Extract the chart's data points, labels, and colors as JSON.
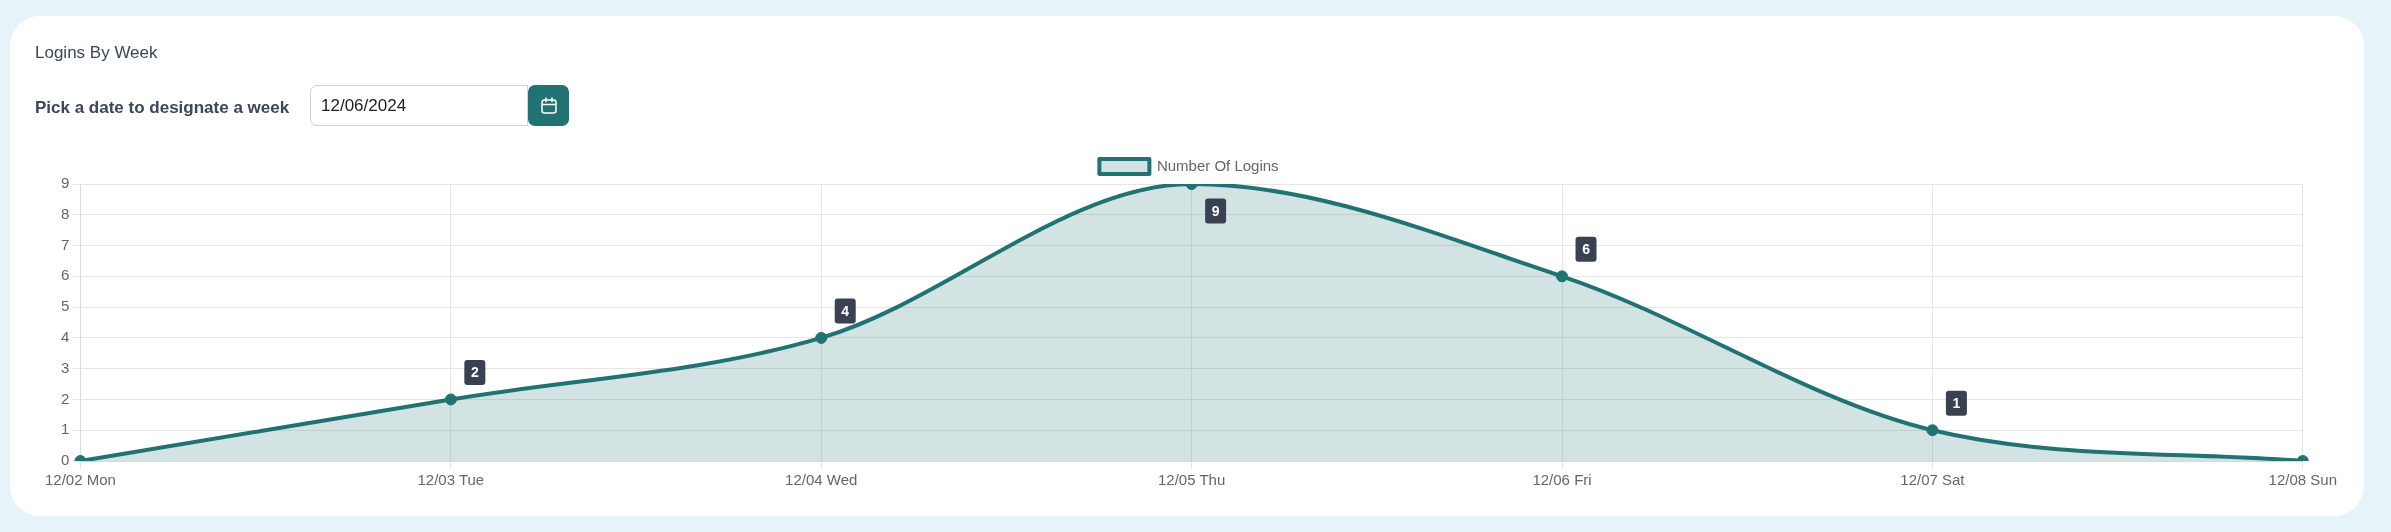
{
  "chart_data": {
    "type": "area",
    "title": "Logins By Week",
    "annotations": [
      "Pick a date to designate a week",
      "12/06/2024"
    ],
    "categories": [
      "12/02 Mon",
      "12/03 Tue",
      "12/04 Wed",
      "12/05 Thu",
      "12/06 Fri",
      "12/07 Sat",
      "12/08 Sun"
    ],
    "series": [
      {
        "name": "Number Of Logins",
        "color": "#217373",
        "values": [
          0,
          2,
          4,
          9,
          6,
          1,
          0
        ],
        "value_labels": [
          null,
          "2",
          "4",
          "9",
          "6",
          "1",
          null
        ]
      }
    ],
    "ylim": [
      0,
      9
    ],
    "yticks": [
      0,
      1,
      2,
      3,
      4,
      5,
      6,
      7,
      8,
      9
    ],
    "grid": true,
    "legend": "top",
    "marker": "circle"
  }
}
